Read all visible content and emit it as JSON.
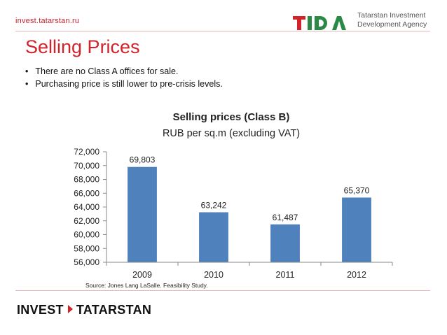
{
  "header": {
    "url": "invest.tatarstan.ru",
    "logo": "tida",
    "agency_line1": "Tatarstan Investment",
    "agency_line2": "Development Agency"
  },
  "page_title": "Selling Prices",
  "bullets": [
    "There are no Class A offices for sale.",
    "Purchasing price is still lower to pre-crisis levels."
  ],
  "chart_data": {
    "type": "bar",
    "title": "Selling prices (Class B)",
    "subtitle": "RUB per sq.m (excluding VAT)",
    "categories": [
      "2009",
      "2010",
      "2011",
      "2012"
    ],
    "values": [
      69803,
      63242,
      61487,
      65370
    ],
    "data_labels": [
      "69,803",
      "63,242",
      "61,487",
      "65,370"
    ],
    "y_ticks": [
      "56,000",
      "58,000",
      "60,000",
      "62,000",
      "64,000",
      "66,000",
      "68,000",
      "70,000",
      "72,000"
    ],
    "ylim": [
      56000,
      72000
    ],
    "grid": false,
    "legend": "none",
    "bar_color": "#4f81bd",
    "source": "Source: Jones Lang LaSalle. Feasibility Study."
  },
  "footer": {
    "brand_left": "INVEST",
    "brand_right": "TATARSTAN"
  },
  "colors": {
    "accent": "#d2232a",
    "logo_green": "#2a8a45"
  }
}
